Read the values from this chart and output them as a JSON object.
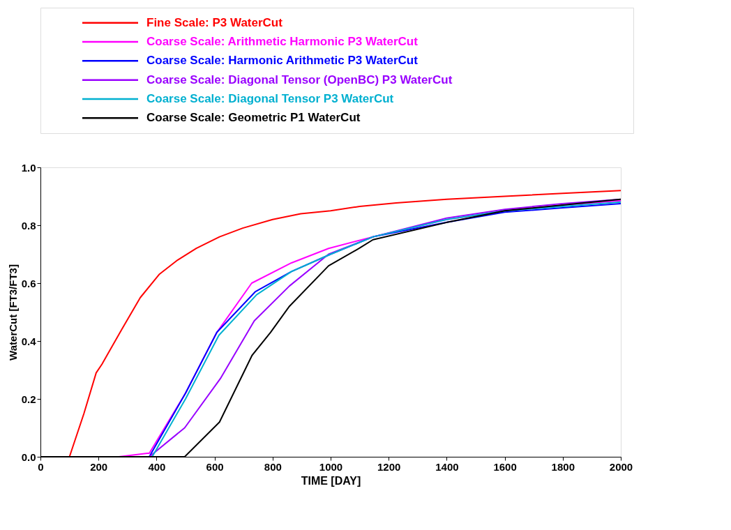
{
  "chart_data": {
    "type": "line",
    "xlabel": "TIME [DAY]",
    "ylabel": "WaterCut  [FT3/FT3]",
    "xlim": [
      0,
      2000
    ],
    "xticks": [
      0,
      200,
      400,
      600,
      800,
      1000,
      1200,
      1400,
      1600,
      1800,
      2000
    ],
    "ylim": [
      0,
      1
    ],
    "yticks": [
      {
        "value": 0,
        "label": "0.0"
      },
      {
        "value": 0.2,
        "label": "0.2"
      },
      {
        "value": 0.4,
        "label": "0.4"
      },
      {
        "value": 0.6,
        "label": "0.6"
      },
      {
        "value": 0.8,
        "label": "0.8"
      },
      {
        "value": 1,
        "label": "1.0"
      }
    ],
    "grid": false,
    "legend": "top",
    "marker": "none",
    "line_style": "solid",
    "series": [
      {
        "name": "Fine Scale: P3 WaterCut",
        "color": "#ff0000",
        "x": [
          0,
          100,
          150,
          192,
          212,
          280,
          344,
          409,
          473,
          537,
          617,
          697,
          800,
          897,
          1000,
          1100,
          1226,
          1400,
          1600,
          1800,
          2000
        ],
        "values": [
          0,
          0,
          0.15,
          0.29,
          0.32,
          0.44,
          0.55,
          0.63,
          0.68,
          0.72,
          0.76,
          0.79,
          0.82,
          0.84,
          0.85,
          0.865,
          0.877,
          0.89,
          0.9,
          0.91,
          0.92
        ]
      },
      {
        "name": "Coarse Scale: Arithmetic Harmonic P3 WaterCut",
        "color": "#ff00ff",
        "x": [
          270,
          368,
          375,
          500,
          608,
          728,
          865,
          993,
          1146,
          1400,
          1600,
          1800,
          2000
        ],
        "values": [
          0,
          0.012,
          0.012,
          0.22,
          0.43,
          0.6,
          0.67,
          0.72,
          0.76,
          0.82,
          0.85,
          0.87,
          0.885
        ]
      },
      {
        "name": "Coarse Scale: Harmonic Arithmetic P3 WaterCut",
        "color": "#0000ff",
        "x": [
          0,
          375,
          500,
          608,
          740,
          865,
          1000,
          1146,
          1400,
          1600,
          1800,
          2000
        ],
        "values": [
          0,
          0,
          0.22,
          0.43,
          0.57,
          0.64,
          0.7,
          0.76,
          0.81,
          0.845,
          0.86,
          0.875
        ]
      },
      {
        "name": "Coarse Scale: Diagonal Tensor (OpenBC) P3 WaterCut",
        "color": "#9900ff",
        "x": [
          0,
          375,
          497,
          620,
          737,
          858,
          993,
          1146,
          1400,
          1600,
          1800,
          2000
        ],
        "values": [
          0,
          0,
          0.1,
          0.27,
          0.47,
          0.59,
          0.7,
          0.76,
          0.825,
          0.855,
          0.875,
          0.89
        ]
      },
      {
        "name": "Coarse Scale: Diagonal Tensor P3 WaterCut",
        "color": "#00b0d0",
        "x": [
          0,
          385,
          500,
          615,
          745,
          865,
          1000,
          1146,
          1400,
          1600,
          1800,
          2000
        ],
        "values": [
          0,
          0,
          0.2,
          0.42,
          0.56,
          0.64,
          0.7,
          0.76,
          0.82,
          0.85,
          0.865,
          0.88
        ]
      },
      {
        "name": "Coarse Scale: Geometric P1 WaterCut",
        "color": "#000000",
        "x": [
          0,
          497,
          617,
          729,
          793,
          858,
          993,
          1098,
          1146,
          1401,
          1600,
          1800,
          2000
        ],
        "values": [
          0,
          0,
          0.12,
          0.35,
          0.43,
          0.52,
          0.66,
          0.72,
          0.75,
          0.81,
          0.85,
          0.87,
          0.89
        ]
      }
    ]
  }
}
